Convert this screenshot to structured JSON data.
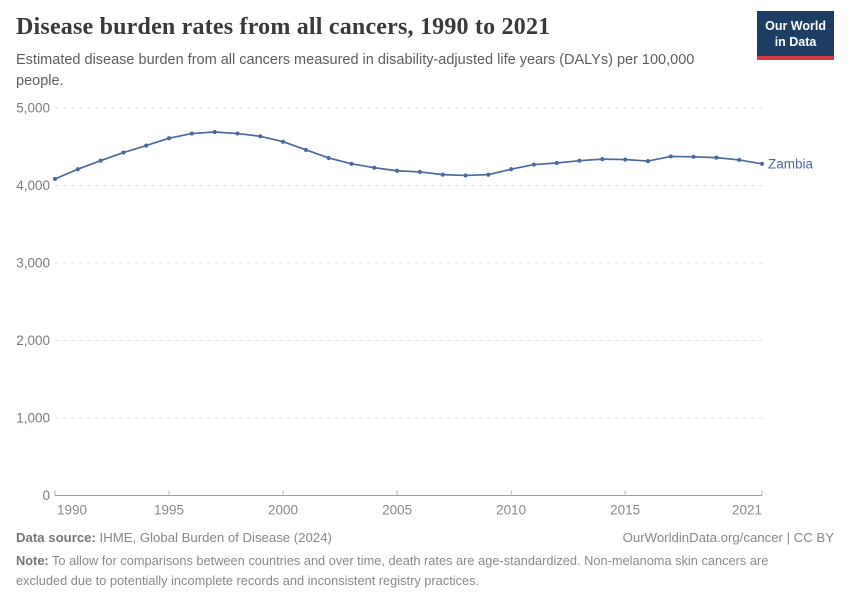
{
  "header": {
    "title": "Disease burden rates from all cancers, 1990 to 2021",
    "subtitle": "Estimated disease burden from all cancers measured in disability-adjusted life years (DALYs) per 100,000 people.",
    "logo": {
      "line1": "Our World",
      "line2": "in Data"
    }
  },
  "colors": {
    "series_blue": "#4c6a9c",
    "logo_navy": "#1d3d63",
    "logo_red": "#d93a3f",
    "grid_gray": "#e2e2e2",
    "axis_gray": "#a0a0a0",
    "tick_text_gray": "#8a8a8a"
  },
  "chart_data": {
    "type": "line",
    "title": "Disease burden rates from all cancers, 1990 to 2021",
    "xlabel": "",
    "ylabel": "DALYs per 100,000 people",
    "xlim": [
      1990,
      2021
    ],
    "ylim": [
      0,
      5000
    ],
    "x_ticks": [
      1990,
      1995,
      2000,
      2005,
      2010,
      2015,
      2021
    ],
    "y_ticks": [
      0,
      1000,
      2000,
      3000,
      4000,
      5000
    ],
    "y_tick_labels": [
      "0",
      "1,000",
      "2,000",
      "3,000",
      "4,000",
      "5,000"
    ],
    "grid": "horizontal-dashed",
    "legend_position": "end-of-line-label",
    "series": [
      {
        "name": "Zambia",
        "color": "#4c6a9c",
        "x": [
          1990,
          1991,
          1992,
          1993,
          1994,
          1995,
          1996,
          1997,
          1998,
          1999,
          2000,
          2001,
          2002,
          2003,
          2004,
          2005,
          2006,
          2007,
          2008,
          2009,
          2010,
          2011,
          2012,
          2013,
          2014,
          2015,
          2016,
          2017,
          2018,
          2019,
          2020,
          2021
        ],
        "values": [
          4085,
          4210,
          4320,
          4425,
          4515,
          4610,
          4670,
          4690,
          4670,
          4635,
          4565,
          4460,
          4355,
          4280,
          4230,
          4190,
          4175,
          4140,
          4130,
          4140,
          4210,
          4270,
          4290,
          4320,
          4340,
          4335,
          4315,
          4375,
          4370,
          4360,
          4330,
          4280
        ]
      }
    ]
  },
  "footer": {
    "data_source_label": "Data source:",
    "data_source_text": " IHME, Global Burden of Disease (2024)",
    "attribution": "OurWorldinData.org/cancer | CC BY",
    "note_label": "Note:",
    "note_text": " To allow for comparisons between countries and over time, death rates are age-standardized. Non-melanoma skin cancers are excluded due to potentially incomplete records and inconsistent registry practices."
  }
}
